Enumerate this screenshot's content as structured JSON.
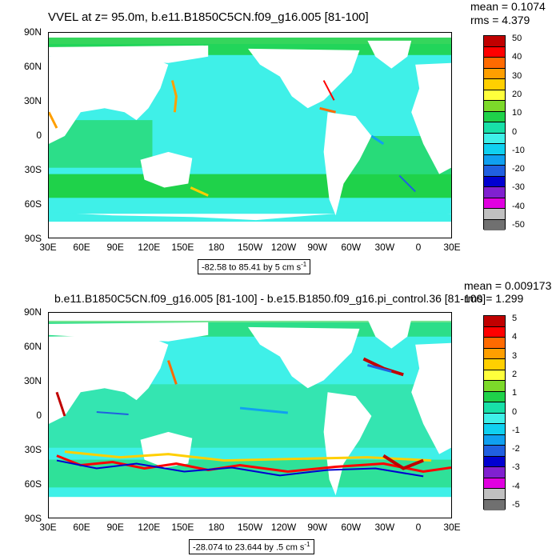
{
  "colors": [
    "#ffffff",
    "#c00000",
    "#ff0000",
    "#ff6a00",
    "#ff9f00",
    "#ffcf00",
    "#ffff3c",
    "#7cd92a",
    "#1fd24a",
    "#18e0a8",
    "#3ff0e8",
    "#10d0f0",
    "#10a0f0",
    "#2060e0",
    "#0000d0",
    "#8020d0",
    "#e000e0",
    "#c0c0c0",
    "#707070"
  ],
  "top": {
    "title": "VVEL at z=  95.0m, b.e11.B1850C5CN.f09_g16.005 [81-100]",
    "mean": "mean = 0.1074",
    "rms": "rms = 4.379",
    "range": "-82.58 to 85.41 by 5 cm s",
    "range_sup": "-1",
    "colorbar_labels": [
      "50",
      "40",
      "30",
      "20",
      "10",
      "0",
      "-10",
      "-20",
      "-30",
      "-40",
      "-50"
    ]
  },
  "bottom": {
    "title": "b.e11.B1850C5CN.f09_g16.005 [81-100] - b.e15.B1850.f09_g16.pi_control.36 [81-100]",
    "mean": "mean = 0.009173",
    "rms": "rms = 1.299",
    "range": "-28.074 to 23.644 by .5 cm s",
    "range_sup": "-1",
    "colorbar_labels": [
      "5",
      "4",
      "3",
      "2",
      "1",
      "0",
      "-1",
      "-2",
      "-3",
      "-4",
      "-5"
    ]
  },
  "lat_labels": [
    "90N",
    "60N",
    "30N",
    "0",
    "30S",
    "60S",
    "90S"
  ],
  "lon_labels": [
    "30E",
    "60E",
    "90E",
    "120E",
    "150E",
    "180",
    "150W",
    "120W",
    "90W",
    "60W",
    "30W",
    "0",
    "30E"
  ]
}
